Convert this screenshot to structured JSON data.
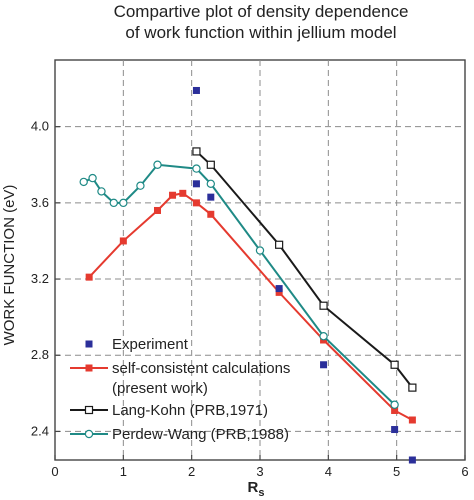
{
  "chart_data": {
    "type": "line",
    "title_lines": [
      "Compartive plot of density dependence",
      "of work function within jellium model"
    ],
    "xlabel": "R",
    "xlabel_sub": "s",
    "ylabel": "WORK FUNCTION (eV)",
    "xlim": [
      0,
      6
    ],
    "ylim": [
      2.25,
      4.35
    ],
    "x_ticks": [
      0,
      1,
      2,
      3,
      4,
      5,
      6
    ],
    "y_ticks": [
      2.4,
      2.8,
      3.2,
      3.6,
      4.0
    ],
    "x_tick_labels": [
      "0",
      "1",
      "2",
      "3",
      "4",
      "5",
      "6"
    ],
    "y_tick_labels": [
      "2.4",
      "2.8",
      "3.2",
      "3.6",
      "4.0"
    ],
    "grid": true,
    "grid_style": "dashed",
    "series": [
      {
        "name": "Experiment",
        "style": "marker-only",
        "marker": "filled-square",
        "color": "#2b2f9a",
        "x": [
          2.07,
          2.07,
          2.28,
          3.28,
          3.93,
          4.97,
          5.23
        ],
        "y": [
          4.19,
          3.7,
          3.63,
          3.15,
          2.75,
          2.41,
          2.25
        ]
      },
      {
        "name": "self-consistent calculations (present work)",
        "legend_lines": [
          "self-consistent calculations",
          "(present work)"
        ],
        "style": "line-marker",
        "marker": "filled-square",
        "color": "#e53a2f",
        "x": [
          0.5,
          1.0,
          1.5,
          1.72,
          1.87,
          2.07,
          2.28,
          3.28,
          3.93,
          4.97,
          5.23
        ],
        "y": [
          3.21,
          3.4,
          3.56,
          3.64,
          3.65,
          3.6,
          3.54,
          3.13,
          2.88,
          2.51,
          2.46
        ]
      },
      {
        "name": "Lang-Kohn (PRB,1971)",
        "style": "line-marker",
        "marker": "open-square",
        "color": "#1a1a1a",
        "x": [
          2.07,
          2.28,
          3.28,
          3.93,
          4.97,
          5.23
        ],
        "y": [
          3.87,
          3.8,
          3.38,
          3.06,
          2.75,
          2.63
        ]
      },
      {
        "name": "Perdew-Wang (PRB,1988)",
        "style": "line-marker",
        "marker": "open-circle",
        "color": "#1f8a86",
        "x": [
          0.42,
          0.55,
          0.68,
          0.86,
          1.0,
          1.25,
          1.5,
          2.07,
          2.28,
          3.0,
          3.93,
          4.97
        ],
        "y": [
          3.71,
          3.73,
          3.66,
          3.6,
          3.6,
          3.69,
          3.8,
          3.78,
          3.7,
          3.35,
          2.9,
          2.54
        ]
      }
    ]
  }
}
